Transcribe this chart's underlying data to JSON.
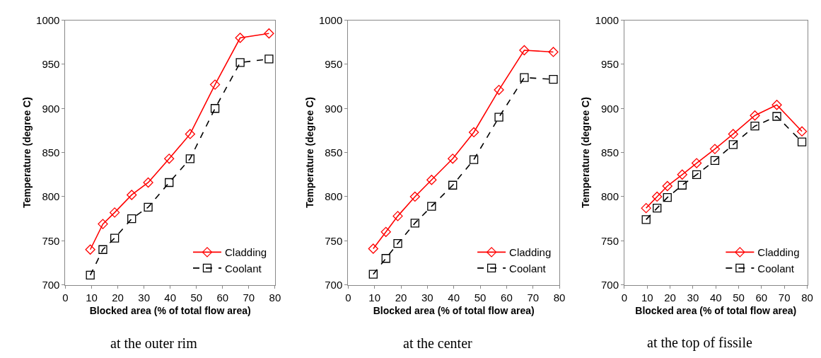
{
  "chart_data": [
    {
      "type": "line",
      "xlabel": "Blocked area (% of total flow area)",
      "ylabel": "Temperature (degree C)",
      "annotations": [
        "at the outer rim"
      ],
      "x": [
        9.5,
        14.3,
        18.8,
        25.3,
        31.6,
        39.6,
        47.6,
        57.1,
        66.7,
        77.7
      ],
      "series": [
        {
          "name": "Cladding",
          "color": "#ff0000",
          "marker": "diamond",
          "line_style": "solid",
          "values": [
            740,
            769,
            782,
            802,
            816,
            843,
            871,
            927,
            980,
            985
          ]
        },
        {
          "name": "Coolant",
          "color": "#000000",
          "marker": "square",
          "line_style": "dashed",
          "values": [
            711,
            740,
            753,
            775,
            788,
            816,
            843,
            900,
            952,
            956
          ]
        }
      ],
      "xlim": [
        0,
        80
      ],
      "xticks": [
        0,
        10,
        20,
        30,
        40,
        50,
        60,
        70,
        80
      ],
      "ylim": [
        700,
        1000
      ],
      "yticks": [
        700,
        750,
        800,
        850,
        900,
        950,
        1000
      ],
      "legend": "bottom right"
    },
    {
      "type": "line",
      "xlabel": "Blocked area (% of total flow area)",
      "ylabel": "Temperature (degree C)",
      "annotations": [
        "at the center"
      ],
      "x": [
        9.5,
        14.3,
        18.8,
        25.3,
        31.6,
        39.6,
        47.6,
        57.1,
        66.7,
        77.7
      ],
      "series": [
        {
          "name": "Cladding",
          "color": "#ff0000",
          "marker": "diamond",
          "line_style": "solid",
          "values": [
            741,
            760,
            778,
            800,
            819,
            843,
            873,
            921,
            966,
            964
          ]
        },
        {
          "name": "Coolant",
          "color": "#000000",
          "marker": "square",
          "line_style": "dashed",
          "values": [
            712,
            730,
            747,
            770,
            789,
            813,
            842,
            890,
            935,
            933
          ]
        }
      ],
      "xlim": [
        0,
        80
      ],
      "xticks": [
        0,
        10,
        20,
        30,
        40,
        50,
        60,
        70,
        80
      ],
      "ylim": [
        700,
        1000
      ],
      "yticks": [
        700,
        750,
        800,
        850,
        900,
        950,
        1000
      ],
      "legend": "bottom right"
    },
    {
      "type": "line",
      "xlabel": "Blocked area (% of total flow area)",
      "ylabel": "Temperature (degree C)",
      "annotations": [
        "at the top of fissile"
      ],
      "x": [
        9.5,
        14.3,
        18.8,
        25.3,
        31.6,
        39.6,
        47.6,
        57.1,
        66.7,
        77.7
      ],
      "series": [
        {
          "name": "Cladding",
          "color": "#ff0000",
          "marker": "diamond",
          "line_style": "solid",
          "values": [
            787,
            800,
            812,
            825,
            838,
            854,
            871,
            892,
            904,
            874
          ]
        },
        {
          "name": "Coolant",
          "color": "#000000",
          "marker": "square",
          "line_style": "dashed",
          "values": [
            774,
            787,
            799,
            813,
            825,
            841,
            859,
            880,
            891,
            862
          ]
        }
      ],
      "xlim": [
        0,
        80
      ],
      "xticks": [
        0,
        10,
        20,
        30,
        40,
        50,
        60,
        70,
        80
      ],
      "ylim": [
        700,
        1000
      ],
      "yticks": [
        700,
        750,
        800,
        850,
        900,
        950,
        1000
      ],
      "legend": "bottom right"
    }
  ]
}
